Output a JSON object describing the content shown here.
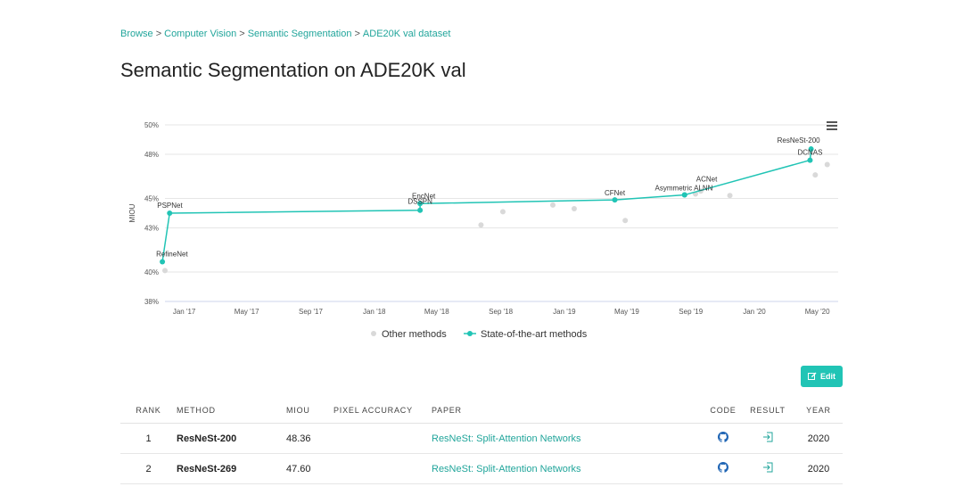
{
  "breadcrumb": {
    "items": [
      "Browse",
      "Computer Vision",
      "Semantic Segmentation",
      "ADE20K val dataset"
    ],
    "separator": ">"
  },
  "page_title": "Semantic Segmentation on ADE20K val",
  "edit_label": "Edit",
  "colors": {
    "accent": "#21c4b5",
    "link": "#21a59b",
    "other_points": "#d9d9d9"
  },
  "icons": {
    "menu": "hamburger-menu-icon",
    "edit": "edit-icon",
    "code": "github-icon",
    "result": "result-icon"
  },
  "chart_data": {
    "type": "line",
    "ylabel": "MIOU",
    "ylim": [
      38,
      50
    ],
    "yticks": [
      38,
      40,
      43,
      45,
      48,
      50
    ],
    "ytick_labels": [
      "38%",
      "40%",
      "43%",
      "45%",
      "48%",
      "50%"
    ],
    "xticks": [
      "2017-01",
      "2017-05",
      "2017-09",
      "2018-01",
      "2018-05",
      "2018-09",
      "2019-01",
      "2019-05",
      "2019-09",
      "2020-01",
      "2020-05"
    ],
    "xtick_labels": [
      "Jan '17",
      "May '17",
      "Sep '17",
      "Jan '18",
      "May '18",
      "Sep '18",
      "Jan '19",
      "May '19",
      "Sep '19",
      "Jan '20",
      "May '20"
    ],
    "xlim": [
      "2016-11-25",
      "2020-06-10"
    ],
    "grid": true,
    "legend": {
      "placement": "bottom",
      "entries": [
        "Other methods",
        "State-of-the-art methods"
      ]
    },
    "series": [
      {
        "name": "State-of-the-art methods",
        "points": [
          {
            "x": "2016-11-20",
            "y": 40.7,
            "label": "RefineNet"
          },
          {
            "x": "2016-12-04",
            "y": 44.0,
            "label": "PSPNet"
          },
          {
            "x": "2018-03-30",
            "y": 44.2,
            "label": "DSSPN"
          },
          {
            "x": "2018-03-30",
            "y": 44.65,
            "label": "EncNet"
          },
          {
            "x": "2019-04-08",
            "y": 44.9,
            "label": "CFNet"
          },
          {
            "x": "2019-08-20",
            "y": 45.24,
            "label": "Asymmetric ALNN"
          },
          {
            "x": "2019-08-20",
            "y": 45.24,
            "label": "ACNet"
          },
          {
            "x": "2020-04-17",
            "y": 47.6,
            "label": "DCNAS"
          },
          {
            "x": "2020-04-19",
            "y": 48.36,
            "label": "ResNeSt-200"
          }
        ]
      },
      {
        "name": "Other methods",
        "points": [
          {
            "x": "2016-11-25",
            "y": 40.1
          },
          {
            "x": "2018-07-25",
            "y": 43.2
          },
          {
            "x": "2018-09-05",
            "y": 44.1
          },
          {
            "x": "2018-12-10",
            "y": 44.55
          },
          {
            "x": "2019-01-20",
            "y": 44.3
          },
          {
            "x": "2019-04-28",
            "y": 43.5
          },
          {
            "x": "2019-09-10",
            "y": 45.3
          },
          {
            "x": "2019-09-20",
            "y": 45.5
          },
          {
            "x": "2019-11-15",
            "y": 45.2
          },
          {
            "x": "2020-04-27",
            "y": 46.6
          },
          {
            "x": "2020-05-20",
            "y": 47.3
          }
        ]
      }
    ]
  },
  "table": {
    "headers": [
      "RANK",
      "METHOD",
      "MIOU",
      "PIXEL ACCURACY",
      "PAPER",
      "CODE",
      "RESULT",
      "YEAR"
    ],
    "rows": [
      {
        "rank": "1",
        "method": "ResNeSt-200",
        "miou": "48.36",
        "pixel_accuracy": "",
        "paper": "ResNeSt: Split-Attention Networks",
        "year": "2020"
      },
      {
        "rank": "2",
        "method": "ResNeSt-269",
        "miou": "47.60",
        "pixel_accuracy": "",
        "paper": "ResNeSt: Split-Attention Networks",
        "year": "2020"
      }
    ]
  }
}
